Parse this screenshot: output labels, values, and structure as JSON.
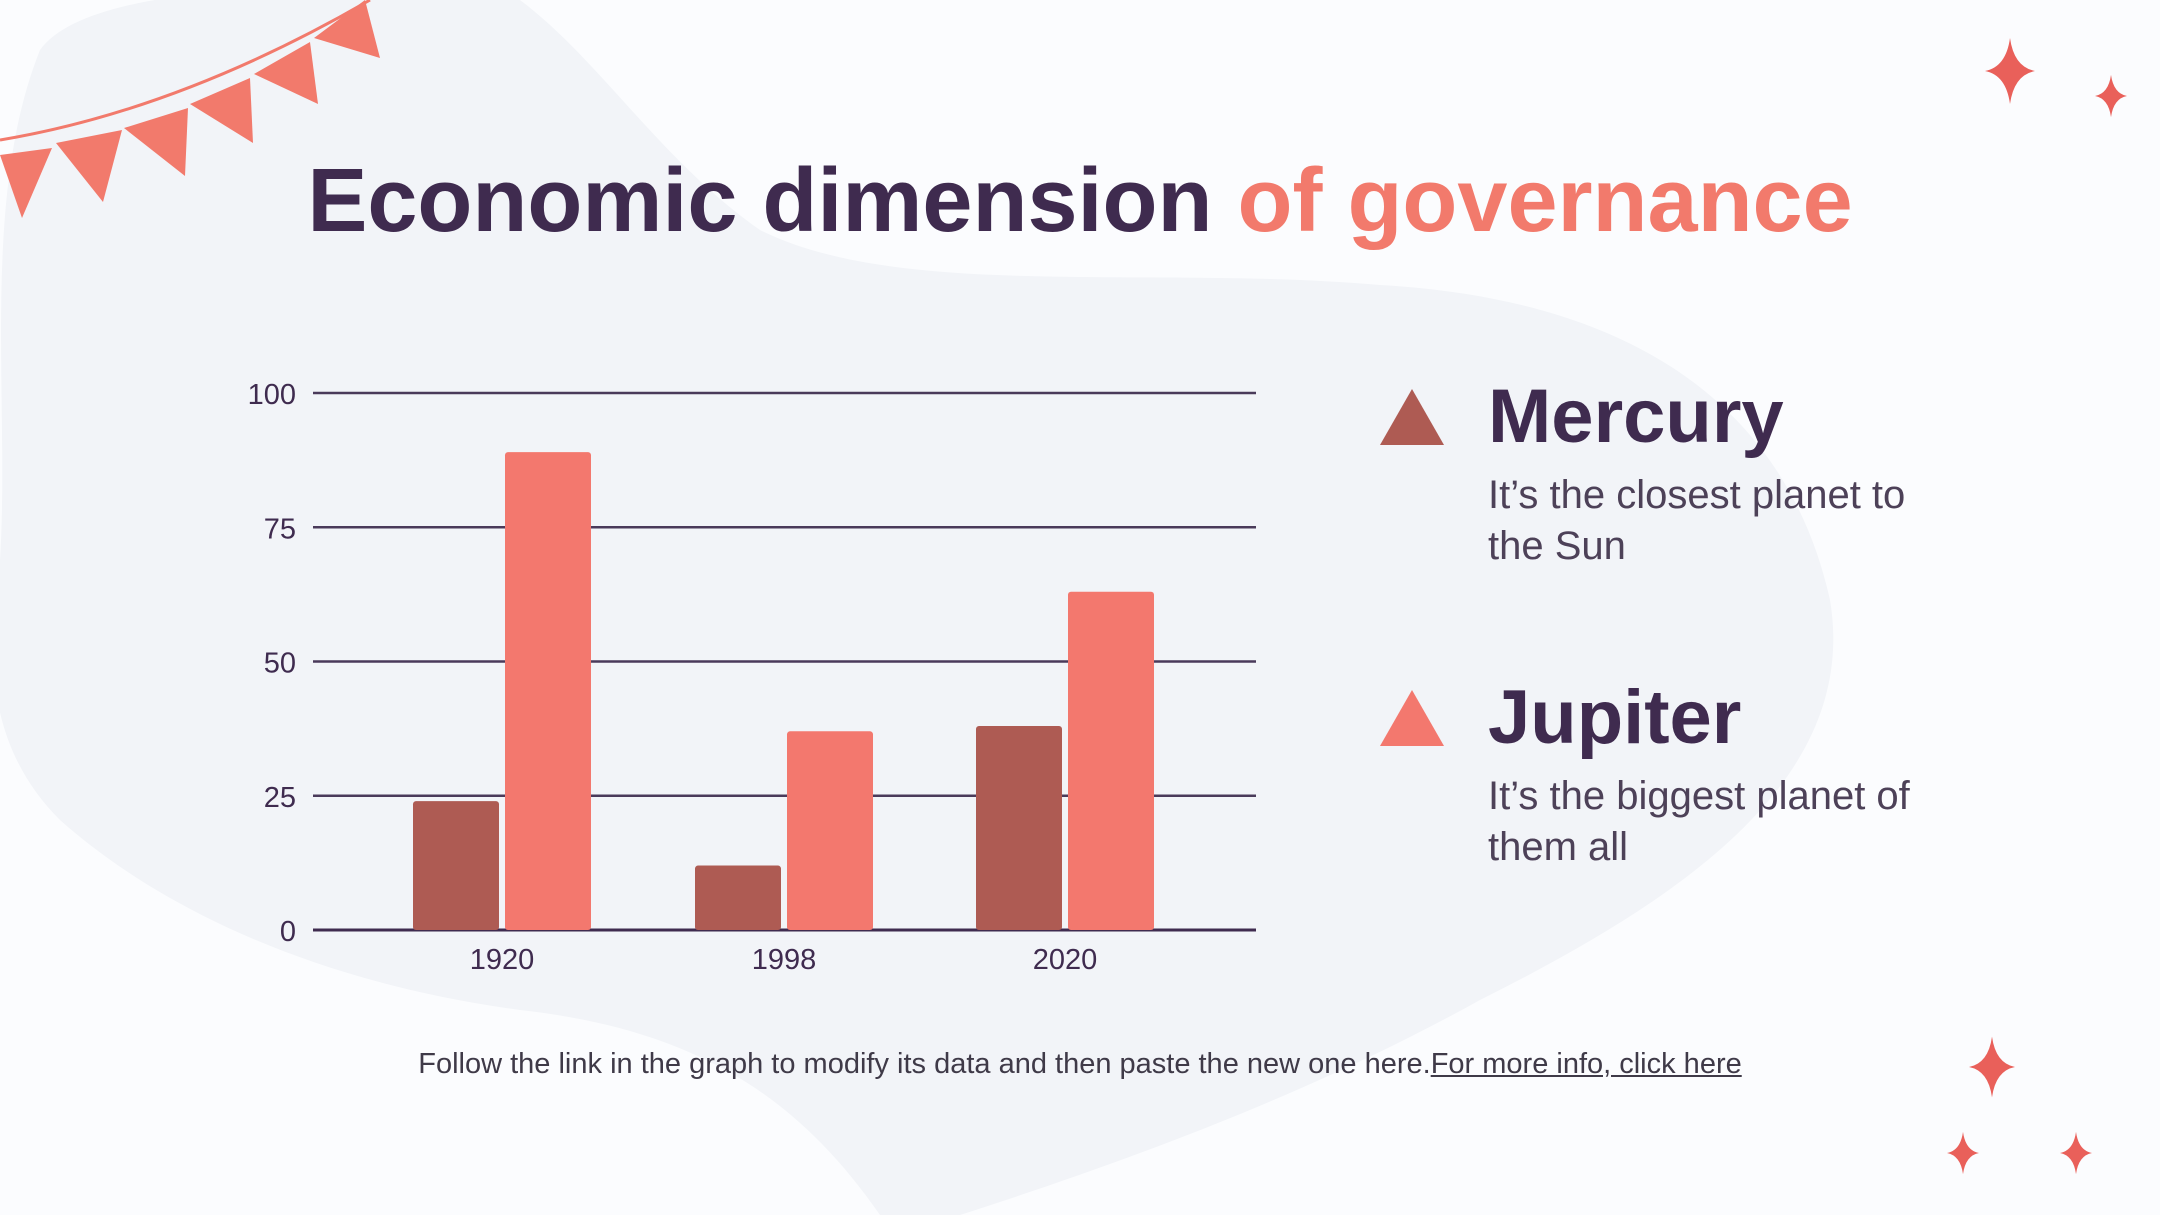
{
  "title": {
    "part1": "Economic dimension",
    "part2": "of governance"
  },
  "colors": {
    "dark": "#3f2b4f",
    "accent": "#f27a6c",
    "series_dark": "#ae5b53",
    "series_light": "#f3786e",
    "sparkle": "#e9605a"
  },
  "legend": [
    {
      "name": "Mercury",
      "description": "It’s the closest planet to the Sun",
      "color": "#ae5b53",
      "marker": "triangle-icon"
    },
    {
      "name": "Jupiter",
      "description": "It’s the biggest planet of them all",
      "color": "#f3786e",
      "marker": "triangle-icon"
    }
  ],
  "chart_data": {
    "type": "bar",
    "categories": [
      "1920",
      "1998",
      "2020"
    ],
    "series": [
      {
        "name": "Mercury",
        "values": [
          24,
          12,
          38
        ],
        "color": "#ae5b53"
      },
      {
        "name": "Jupiter",
        "values": [
          89,
          37,
          63
        ],
        "color": "#f3786e"
      }
    ],
    "yticks": [
      "0",
      "25",
      "50",
      "75",
      "100"
    ],
    "ylim": [
      0,
      100
    ],
    "grid": true,
    "legend_position": "right"
  },
  "footer": {
    "text": "Follow the link in the graph to modify its data and then paste the new one here.",
    "link_text": "For more info, click here"
  }
}
